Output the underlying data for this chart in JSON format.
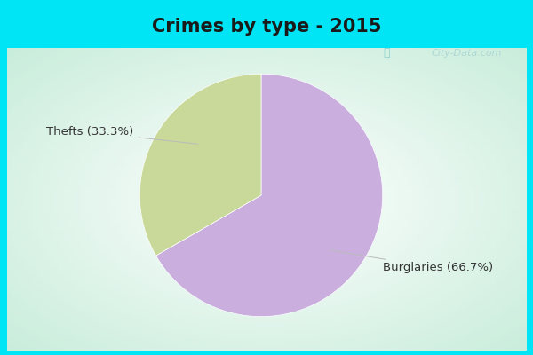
{
  "title": "Crimes by type - 2015",
  "slices": [
    66.7,
    33.3
  ],
  "labels": [
    "Burglaries (66.7%)",
    "Thefts (33.3%)"
  ],
  "colors": [
    "#c9aede",
    "#c8d99a"
  ],
  "bg_cyan": "#00e5f5",
  "bg_main": "#d8f2e4",
  "title_fontsize": 15,
  "label_fontsize": 9.5,
  "startangle": 90,
  "watermark": "City-Data.com"
}
